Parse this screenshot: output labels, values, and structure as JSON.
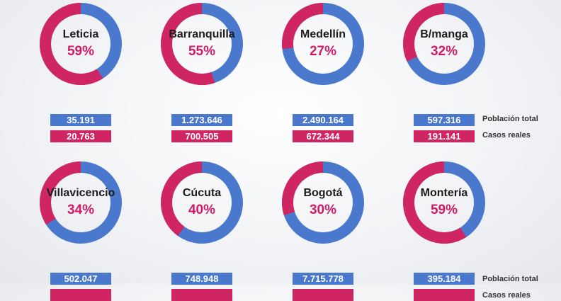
{
  "chart_data": {
    "type": "pie",
    "colors": {
      "positive": "#cf2563",
      "remaining": "#4a78cd"
    },
    "legend": {
      "poblacion": "Población total",
      "casos": "Casos reales"
    },
    "cities": [
      {
        "name": "Leticia",
        "pct": 59,
        "pct_label": "59%",
        "population": "35.191",
        "cases": "20.763"
      },
      {
        "name": "Barranquilla",
        "pct": 55,
        "pct_label": "55%",
        "population": "1.273.646",
        "cases": "700.505"
      },
      {
        "name": "Medellín",
        "pct": 27,
        "pct_label": "27%",
        "population": "2.490.164",
        "cases": "672.344"
      },
      {
        "name": "B/manga",
        "pct": 32,
        "pct_label": "32%",
        "population": "597.316",
        "cases": "191.141"
      },
      {
        "name": "Villavicencio",
        "pct": 34,
        "pct_label": "34%",
        "population": "502.047",
        "cases": ""
      },
      {
        "name": "Cúcuta",
        "pct": 40,
        "pct_label": "40%",
        "population": "748.948",
        "cases": ""
      },
      {
        "name": "Bogotá",
        "pct": 30,
        "pct_label": "30%",
        "population": "7.715.778",
        "cases": ""
      },
      {
        "name": "Montería",
        "pct": 59,
        "pct_label": "59%",
        "population": "395.184",
        "cases": ""
      }
    ]
  }
}
